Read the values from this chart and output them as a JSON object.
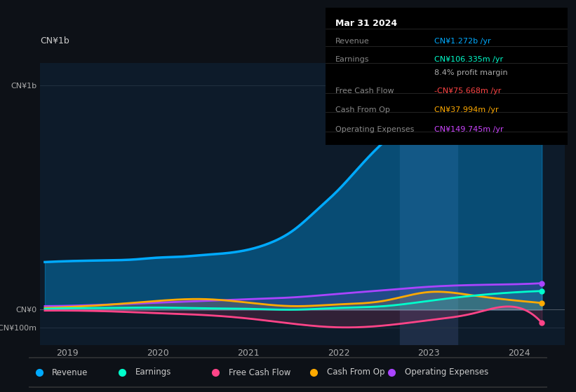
{
  "bg_color": "#0d1117",
  "plot_bg_color": "#0d1b2a",
  "title": "Mar 31 2024",
  "ylabel_top": "CN¥1b",
  "yticks": [
    "CN¥1b",
    "CN¥0",
    "-CN¥100m"
  ],
  "ytick_values": [
    1272,
    0,
    -100
  ],
  "ylim": [
    -200,
    1400
  ],
  "xlim_start": 2018.7,
  "xlim_end": 2024.5,
  "xticks": [
    2019,
    2020,
    2021,
    2022,
    2023,
    2024
  ],
  "info_box": {
    "title": "Mar 31 2024",
    "rows": [
      {
        "label": "Revenue",
        "value": "CN¥1.272b /yr",
        "value_color": "#00aaff"
      },
      {
        "label": "Earnings",
        "value": "CN¥106.335m /yr",
        "value_color": "#00ffcc"
      },
      {
        "label": "",
        "value": "8.4% profit margin",
        "value_color": "#aaaaaa"
      },
      {
        "label": "Free Cash Flow",
        "value": "-CN¥75.668m /yr",
        "value_color": "#ff4444"
      },
      {
        "label": "Cash From Op",
        "value": "CN¥37.994m /yr",
        "value_color": "#ffaa00"
      },
      {
        "label": "Operating Expenses",
        "value": "CN¥149.745m /yr",
        "value_color": "#cc44ff"
      }
    ]
  },
  "series": {
    "revenue": {
      "color": "#00aaff",
      "fill": true,
      "fill_alpha": 0.35,
      "linewidth": 2.5,
      "x": [
        2018.75,
        2019.0,
        2019.25,
        2019.5,
        2019.75,
        2020.0,
        2020.25,
        2020.5,
        2020.75,
        2021.0,
        2021.25,
        2021.5,
        2021.75,
        2022.0,
        2022.25,
        2022.5,
        2022.75,
        2023.0,
        2023.25,
        2023.5,
        2023.75,
        2024.0,
        2024.25
      ],
      "y": [
        270,
        275,
        278,
        280,
        285,
        295,
        300,
        310,
        320,
        340,
        380,
        450,
        560,
        680,
        820,
        950,
        1050,
        1130,
        1190,
        1220,
        1240,
        1260,
        1272
      ]
    },
    "earnings": {
      "color": "#00ffcc",
      "fill": true,
      "fill_alpha": 0.15,
      "linewidth": 2,
      "x": [
        2018.75,
        2019.0,
        2019.5,
        2020.0,
        2020.5,
        2021.0,
        2021.5,
        2022.0,
        2022.5,
        2023.0,
        2023.5,
        2024.0,
        2024.25
      ],
      "y": [
        5,
        8,
        10,
        12,
        8,
        5,
        0,
        10,
        20,
        50,
        80,
        100,
        106
      ]
    },
    "free_cash_flow": {
      "color": "#ff4488",
      "fill": true,
      "fill_alpha": 0.15,
      "linewidth": 2,
      "x": [
        2018.75,
        2019.0,
        2019.5,
        2020.0,
        2020.5,
        2021.0,
        2021.5,
        2022.0,
        2022.5,
        2023.0,
        2023.5,
        2024.0,
        2024.25
      ],
      "y": [
        -5,
        -5,
        -10,
        -20,
        -30,
        -50,
        -80,
        -100,
        -90,
        -60,
        -20,
        10,
        -75
      ]
    },
    "cash_from_op": {
      "color": "#ffaa00",
      "fill": true,
      "fill_alpha": 0.15,
      "linewidth": 2,
      "x": [
        2018.75,
        2019.0,
        2019.5,
        2020.0,
        2020.5,
        2021.0,
        2021.5,
        2022.0,
        2022.5,
        2023.0,
        2023.5,
        2024.0,
        2024.25
      ],
      "y": [
        10,
        15,
        30,
        50,
        60,
        40,
        20,
        30,
        50,
        100,
        80,
        50,
        38
      ]
    },
    "operating_expenses": {
      "color": "#aa44ff",
      "fill": true,
      "fill_alpha": 0.15,
      "linewidth": 2,
      "x": [
        2018.75,
        2019.0,
        2019.5,
        2020.0,
        2020.5,
        2021.0,
        2021.5,
        2022.0,
        2022.5,
        2023.0,
        2023.5,
        2024.0,
        2024.25
      ],
      "y": [
        20,
        22,
        30,
        40,
        50,
        60,
        70,
        90,
        110,
        130,
        140,
        145,
        150
      ]
    }
  },
  "legend": [
    {
      "label": "Revenue",
      "color": "#00aaff"
    },
    {
      "label": "Earnings",
      "color": "#00ffcc"
    },
    {
      "label": "Free Cash Flow",
      "color": "#ff4488"
    },
    {
      "label": "Cash From Op",
      "color": "#ffaa00"
    },
    {
      "label": "Operating Expenses",
      "color": "#aa44ff"
    }
  ],
  "vline_x": 2023.0,
  "vline_color": "#2a3a5a"
}
